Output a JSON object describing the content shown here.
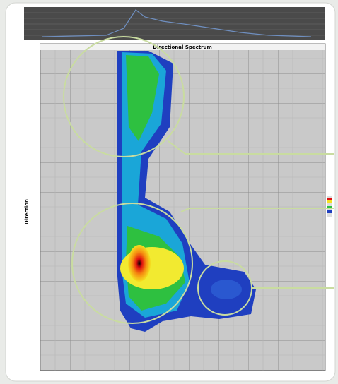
{
  "title": "Directional Spectrum",
  "y_axis_label": "Direction"
}
